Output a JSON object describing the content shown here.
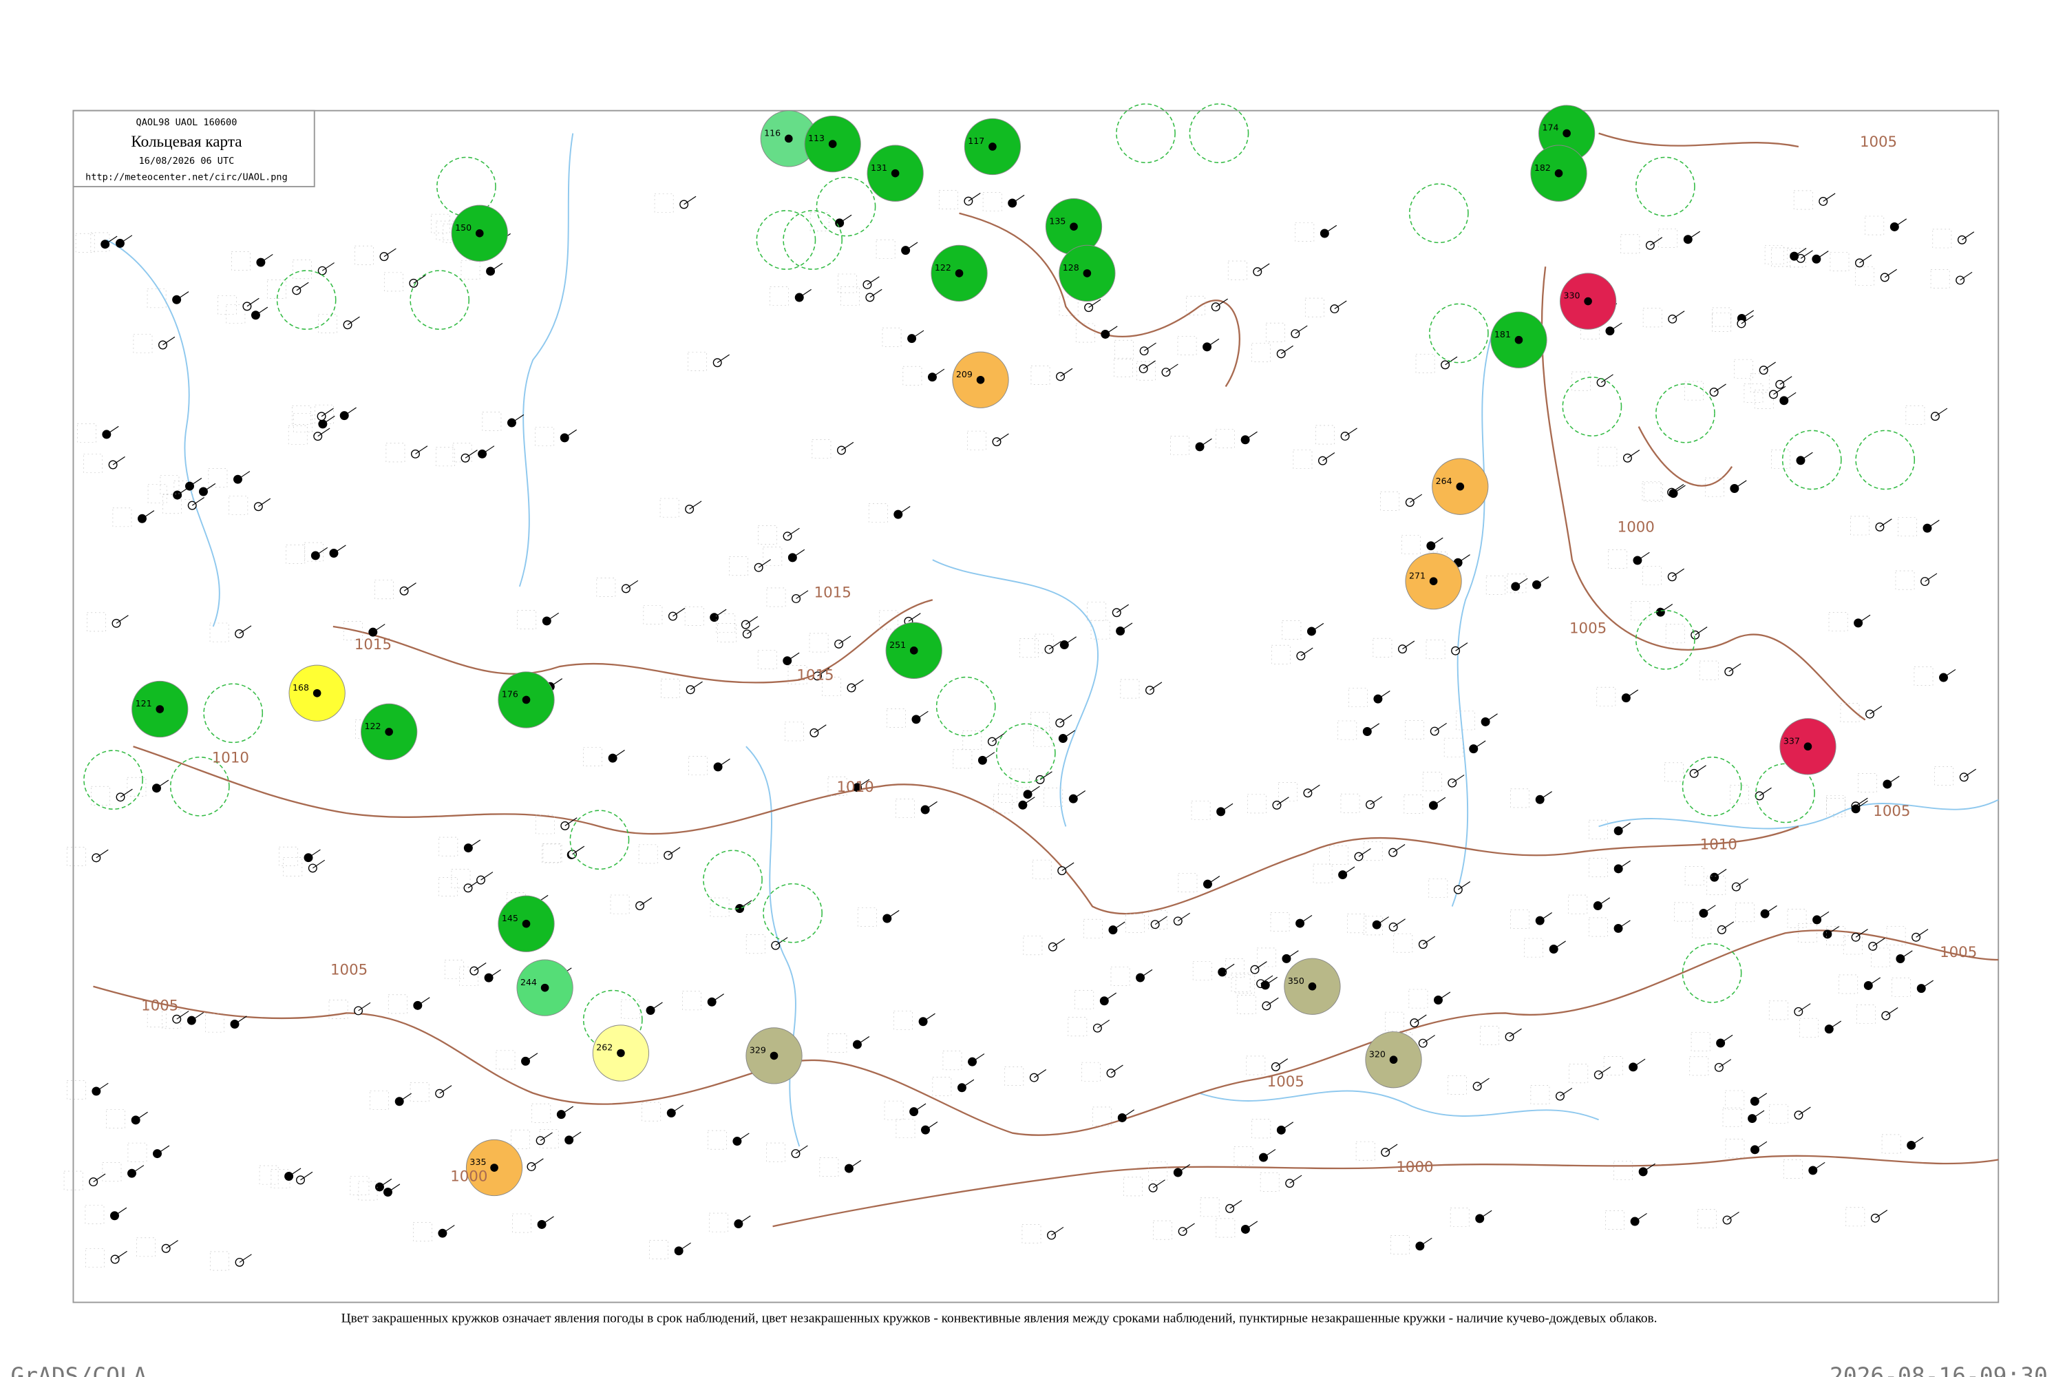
{
  "header": {
    "code": "QAOL98  UAOL  160600",
    "title": "Кольцевая карта",
    "datetime": "16/08/2026 06 UTC",
    "url": "http://meteocenter.net/circ/UAOL.png"
  },
  "isobars": [
    {
      "label": "1015"
    },
    {
      "label": "1015"
    },
    {
      "label": "1015"
    },
    {
      "label": "1010"
    },
    {
      "label": "1010"
    },
    {
      "label": "1010"
    },
    {
      "label": "1005"
    },
    {
      "label": "1005"
    },
    {
      "label": "1005"
    },
    {
      "label": "1005"
    },
    {
      "label": "1005"
    },
    {
      "label": "1005"
    },
    {
      "label": "1000"
    },
    {
      "label": "1000"
    },
    {
      "label": "1000"
    },
    {
      "label": "1005"
    }
  ],
  "stations": [
    {
      "pressure": "168",
      "color": "#ffff33"
    },
    {
      "pressure": "121",
      "color": "#11bb22"
    },
    {
      "pressure": "122",
      "color": "#11bb22"
    },
    {
      "pressure": "176",
      "color": "#11bb22"
    },
    {
      "pressure": "150",
      "color": "#11bb22"
    },
    {
      "pressure": "251",
      "color": "#11bb22"
    },
    {
      "pressure": "145",
      "color": "#11bb22"
    },
    {
      "pressure": "244",
      "color": "#55dd77"
    },
    {
      "pressure": "262",
      "color": "#ffff99"
    },
    {
      "pressure": "329",
      "color": "#b8b888"
    },
    {
      "pressure": "350",
      "color": "#b8b888"
    },
    {
      "pressure": "320",
      "color": "#b8b888"
    },
    {
      "pressure": "335",
      "color": "#f8b850"
    },
    {
      "pressure": "209",
      "color": "#f8b850"
    },
    {
      "pressure": "264",
      "color": "#f8b850"
    },
    {
      "pressure": "271",
      "color": "#f8b850"
    },
    {
      "pressure": "330",
      "color": "#e02050"
    },
    {
      "pressure": "337",
      "color": "#e02050"
    },
    {
      "pressure": "181",
      "color": "#11bb22"
    },
    {
      "pressure": "174",
      "color": "#11bb22"
    },
    {
      "pressure": "182",
      "color": "#11bb22"
    },
    {
      "pressure": "135",
      "color": "#11bb22"
    },
    {
      "pressure": "128",
      "color": "#11bb22"
    },
    {
      "pressure": "122",
      "color": "#11bb22"
    },
    {
      "pressure": "117",
      "color": "#11bb22"
    },
    {
      "pressure": "131",
      "color": "#11bb22"
    },
    {
      "pressure": "116",
      "color": "#66dd88"
    },
    {
      "pressure": "113",
      "color": "#11bb22"
    }
  ],
  "caption": "Цвет закрашенных кружков означает явления погоды в срок наблюдений, цвет незакрашенных кружков - конвективные явления между сроками наблюдений, пунктирные незакрашенные кружки - наличие кучево-дождевых облаков.",
  "footer": {
    "left": "GrADS/COLA",
    "right": "2026-08-16-09:30"
  }
}
